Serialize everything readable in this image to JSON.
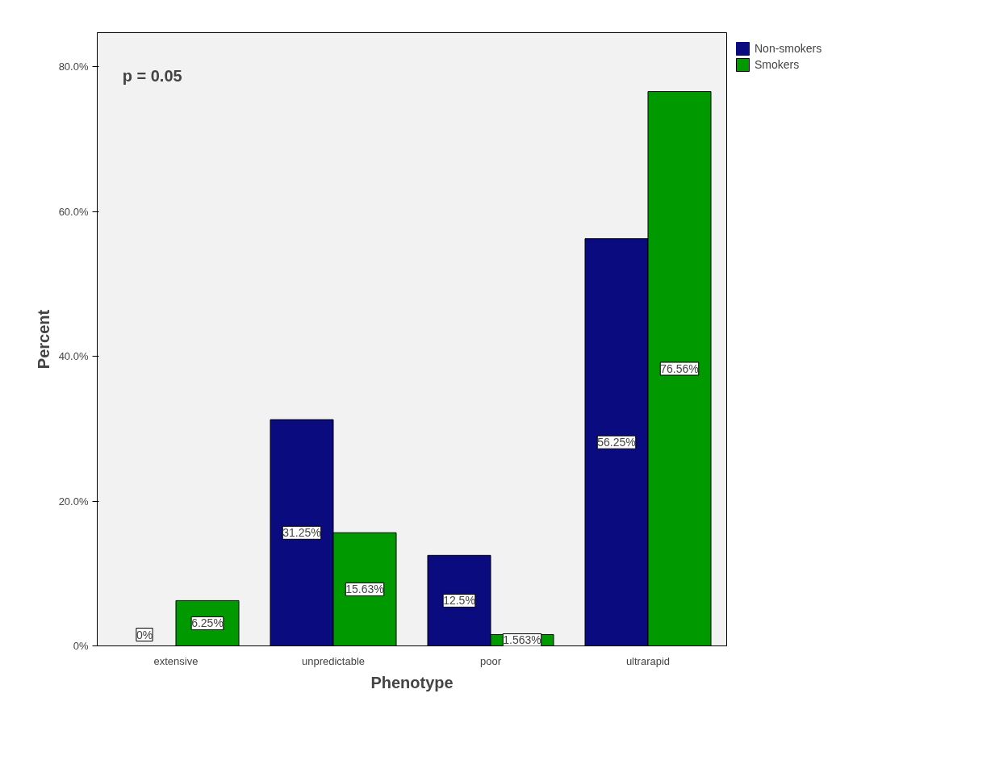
{
  "chart_data": {
    "type": "bar",
    "xlabel": "Phenotype",
    "ylabel": "Percent",
    "categories": [
      "extensive",
      "unpredictable",
      "poor",
      "ultrarapid"
    ],
    "series": [
      {
        "name": "Non-smokers",
        "color": "#0b0b80",
        "values": [
          0,
          31.25,
          12.5,
          56.25
        ],
        "value_labels": [
          "0%",
          "31.25%",
          "12.5%",
          "56.25%"
        ]
      },
      {
        "name": "Smokers",
        "color": "#009a00",
        "values": [
          6.25,
          15.63,
          1.563,
          76.56
        ],
        "value_labels": [
          "6.25%",
          "15.63%",
          "1.563%",
          "76.56%"
        ]
      }
    ],
    "ylim": [
      0,
      84.7
    ],
    "yticks": [
      {
        "value": 0,
        "label": "0%"
      },
      {
        "value": 20,
        "label": "20.0%"
      },
      {
        "value": 40,
        "label": "40.0%"
      },
      {
        "value": 60,
        "label": "60.0%"
      },
      {
        "value": 80,
        "label": "80.0%"
      }
    ],
    "annotations": [
      "p = 0.05"
    ],
    "legend": "top right",
    "grid": false
  }
}
